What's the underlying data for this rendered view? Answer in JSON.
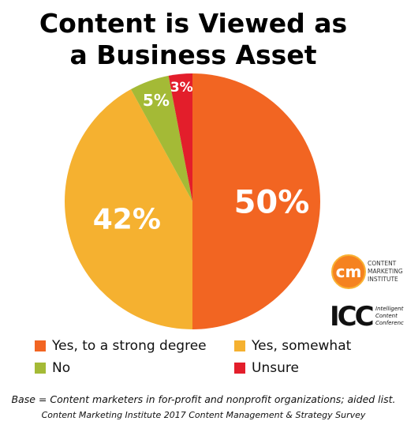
{
  "title": "Content is Viewed as a Business Asset",
  "title_lines": [
    "Content is Viewed as",
    "a Business Asset"
  ],
  "chart_data": {
    "type": "pie",
    "title": "Content is Viewed as a Business Asset",
    "slices": [
      {
        "label": "Yes, to a strong degree",
        "value": 50,
        "display": "50%",
        "color": "#F26522"
      },
      {
        "label": "Yes, somewhat",
        "value": 42,
        "display": "42%",
        "color": "#F5B130"
      },
      {
        "label": "No",
        "value": 5,
        "display": "5%",
        "color": "#A4BA36"
      },
      {
        "label": "Unsure",
        "value": 3,
        "display": "3%",
        "color": "#E31E2B"
      }
    ],
    "legend_placement": "bottom"
  },
  "logos": {
    "cmi": {
      "mark": "cm",
      "lines": [
        "CONTENT",
        "MARKETING",
        "INSTITUTE"
      ]
    },
    "icc": {
      "mark": "ICC",
      "lines": [
        "Intelligent",
        "Content",
        "Conference"
      ]
    }
  },
  "notes": {
    "base": "Base = Content marketers in for-profit and nonprofit organizations; aided list.",
    "source": "Content Marketing Institute 2017 Content Management & Strategy Survey"
  }
}
